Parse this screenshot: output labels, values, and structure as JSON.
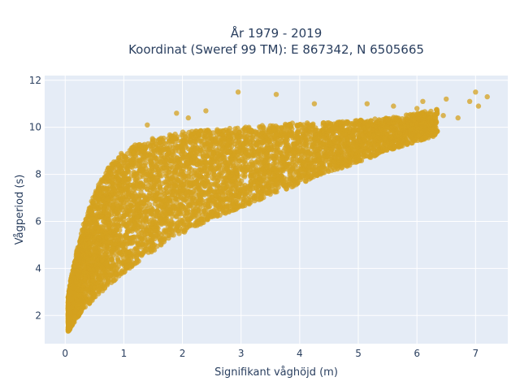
{
  "chart_data": {
    "type": "scatter",
    "title_lines": [
      "År 1979 - 2019",
      "Koordinat (Sweref 99 TM): E 867342, N 6505665"
    ],
    "xlabel": "Signifikant våghöjd (m)",
    "ylabel": "Vågperiod (s)",
    "xlim": [
      -0.35,
      7.55
    ],
    "ylim": [
      0.8,
      12.2
    ],
    "xticks": [
      0,
      1,
      2,
      3,
      4,
      5,
      6,
      7
    ],
    "yticks": [
      2,
      4,
      6,
      8,
      10,
      12
    ],
    "grid": true,
    "colors": {
      "marker": "#d4a21f",
      "plot_background": "#e5ecf6",
      "grid": "#ffffff",
      "text": "#2a3f5f"
    },
    "approximation_note": "Dense point cloud; shape estimated.",
    "envelope": {
      "x": [
        0.05,
        0.1,
        0.2,
        0.3,
        0.5,
        0.7,
        1.0,
        1.3,
        1.6,
        2.0,
        2.5,
        3.0,
        3.5,
        4.0,
        4.5,
        5.0,
        5.5,
        6.0,
        6.4
      ],
      "y_lower": [
        1.3,
        1.5,
        1.9,
        2.2,
        2.7,
        3.2,
        3.8,
        4.4,
        4.9,
        5.5,
        6.1,
        6.6,
        7.1,
        7.6,
        8.1,
        8.5,
        9.0,
        9.4,
        9.7
      ],
      "y_upper": [
        2.8,
        3.6,
        4.8,
        5.8,
        7.2,
        8.2,
        9.0,
        9.4,
        9.6,
        9.8,
        9.9,
        10.0,
        10.1,
        10.2,
        10.2,
        10.3,
        10.4,
        10.6,
        10.8
      ]
    },
    "outliers": [
      {
        "x": 2.95,
        "y": 11.5
      },
      {
        "x": 3.6,
        "y": 11.4
      },
      {
        "x": 4.25,
        "y": 11.0
      },
      {
        "x": 5.15,
        "y": 11.0
      },
      {
        "x": 5.6,
        "y": 10.9
      },
      {
        "x": 6.0,
        "y": 10.8
      },
      {
        "x": 6.1,
        "y": 11.1
      },
      {
        "x": 6.5,
        "y": 11.2
      },
      {
        "x": 6.9,
        "y": 11.1
      },
      {
        "x": 7.0,
        "y": 11.5
      },
      {
        "x": 7.05,
        "y": 10.9
      },
      {
        "x": 7.2,
        "y": 11.3
      },
      {
        "x": 6.45,
        "y": 10.5
      },
      {
        "x": 6.7,
        "y": 10.4
      },
      {
        "x": 1.9,
        "y": 10.6
      },
      {
        "x": 2.4,
        "y": 10.7
      },
      {
        "x": 1.4,
        "y": 10.1
      },
      {
        "x": 2.1,
        "y": 10.4
      }
    ]
  }
}
